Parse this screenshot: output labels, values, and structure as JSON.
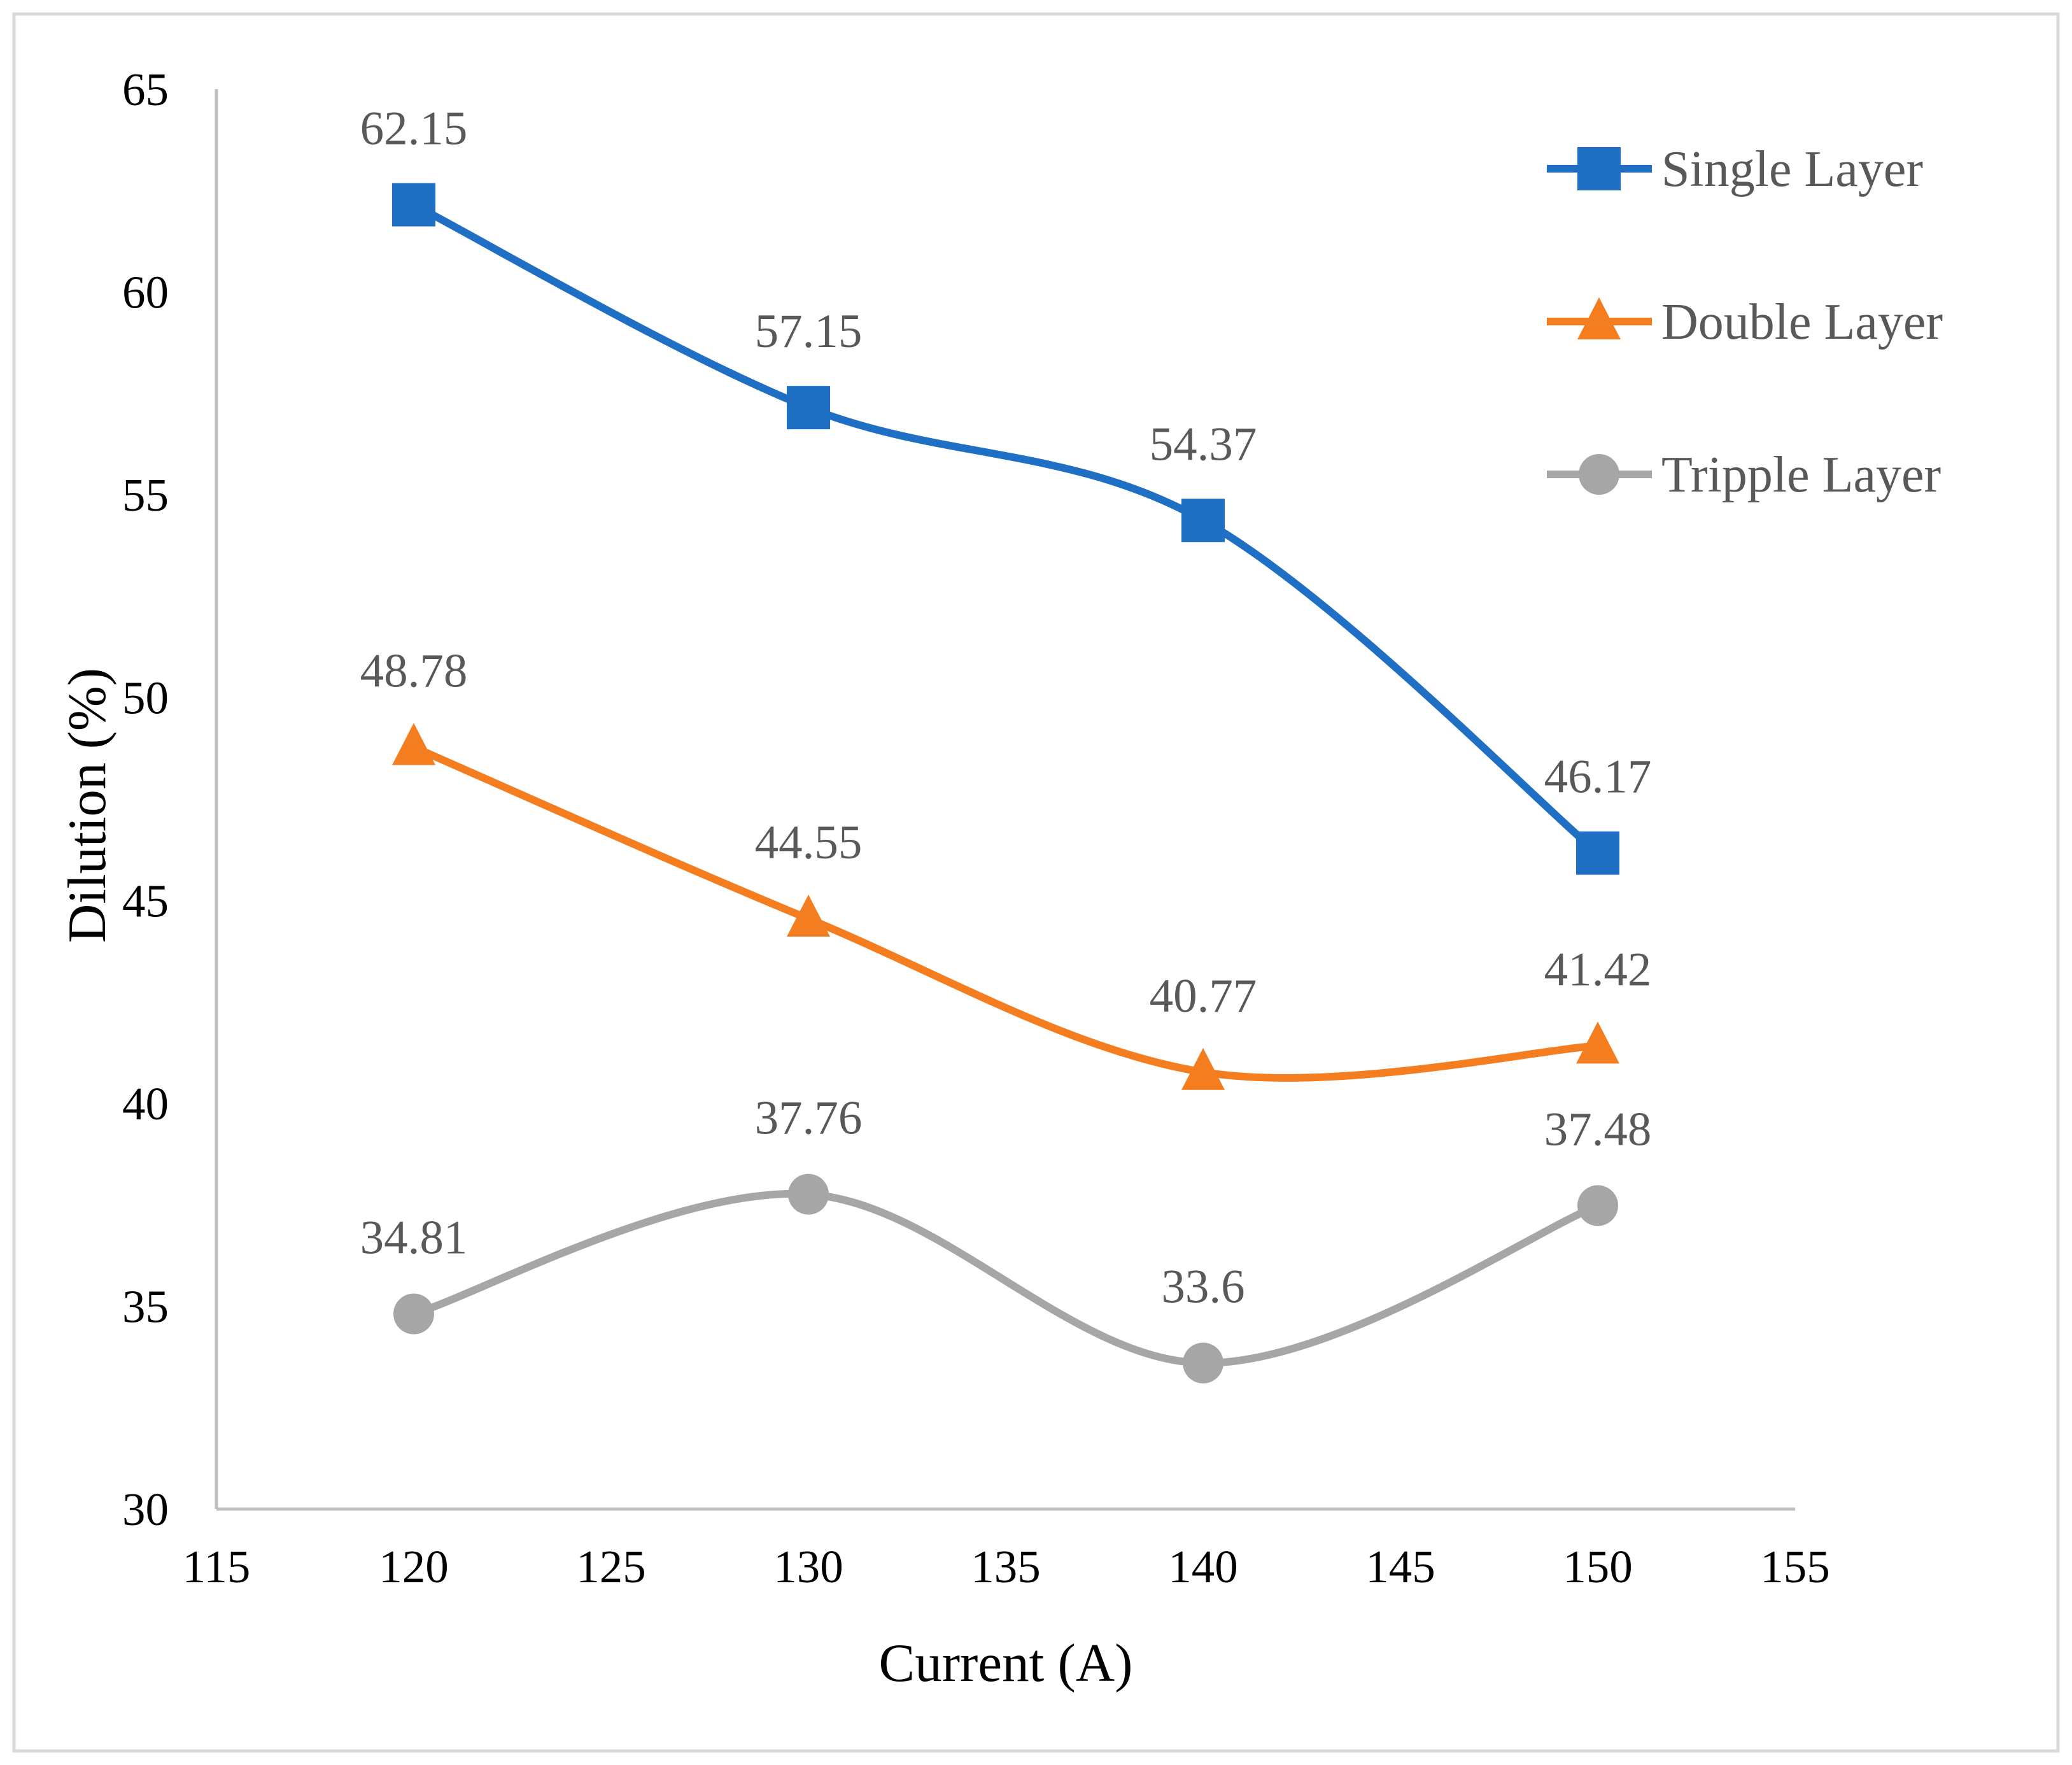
{
  "chart_data": {
    "type": "line",
    "smooth": true,
    "xlabel": "Current (A)",
    "ylabel": "Dilution (%)",
    "xlim": [
      115,
      155
    ],
    "ylim": [
      30,
      65
    ],
    "xticks": [
      115,
      120,
      125,
      130,
      135,
      140,
      145,
      150,
      155
    ],
    "yticks": [
      30,
      35,
      40,
      45,
      50,
      55,
      60,
      65
    ],
    "grid": false,
    "legend_position": "top-right",
    "x": [
      120,
      130,
      140,
      150
    ],
    "series": [
      {
        "name": "Single Layer",
        "values": [
          62.15,
          57.15,
          54.37,
          46.17
        ],
        "labels": [
          "62.15",
          "57.15",
          "54.37",
          "46.17"
        ],
        "color": "#1f6fc5",
        "marker": "square"
      },
      {
        "name": "Double Layer",
        "values": [
          48.78,
          44.55,
          40.77,
          41.42
        ],
        "labels": [
          "48.78",
          "44.55",
          "40.77",
          "41.42"
        ],
        "color": "#f47d20",
        "marker": "triangle"
      },
      {
        "name": "Tripple Layer",
        "values": [
          34.81,
          37.76,
          33.6,
          37.48
        ],
        "labels": [
          "34.81",
          "37.76",
          "33.6",
          "37.48"
        ],
        "color": "#a6a6a6",
        "marker": "circle"
      }
    ]
  }
}
